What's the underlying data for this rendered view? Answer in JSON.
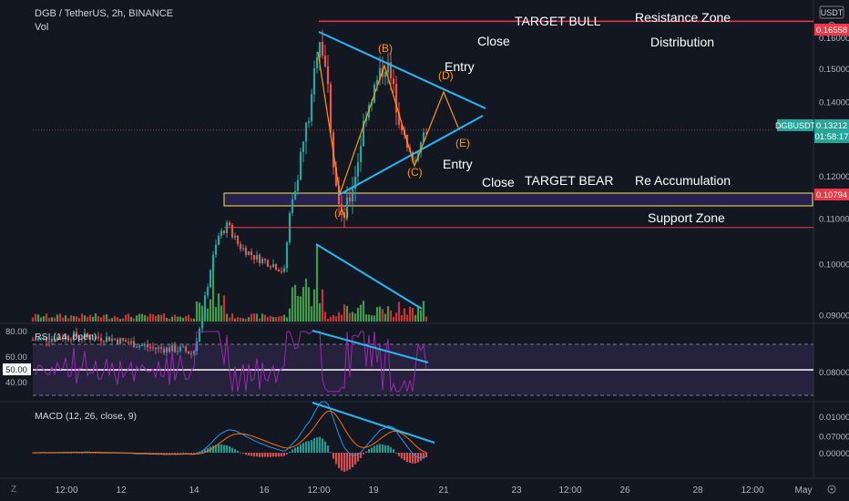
{
  "header": {
    "symbol_line": "DGB / TetherUS, 2h, BINANCE",
    "volume_label": "Vol",
    "currency_badge": "USDT",
    "settings_icon": "gear-icon"
  },
  "price_axis": {
    "ticks": [
      "0.16000",
      "0.15000",
      "0.14000",
      "0.13000",
      "0.12000",
      "0.11000",
      "0.10000",
      "0.09000",
      "0.08000",
      "0.07000"
    ],
    "ylim": [
      0.062,
      0.1715
    ],
    "scale": "log"
  },
  "price_markers": {
    "top": {
      "value": "0.16558",
      "color": "#f23645"
    },
    "current": {
      "symbol": "DGBUSDT",
      "value": "0.13212",
      "countdown": "01:58:17",
      "color": "#26a69a"
    },
    "bottom": {
      "value": "0.10794",
      "color": "#f23645"
    }
  },
  "annotations": {
    "target_bull": "TARGET BULL",
    "resistance_zone": "Resistance Zone",
    "close_top": "Close",
    "distribution": "Distribution",
    "entry_top": "Entry",
    "entry_bottom": "Entry",
    "close_bottom": "Close",
    "target_bear": "TARGET BEAR",
    "re_accumulation": "Re Accumulation",
    "support_zone": "Support Zone",
    "wave_labels": [
      "(A)",
      "(B)",
      "(C)",
      "(D)",
      "(E)"
    ]
  },
  "rsi": {
    "title": "RSI (14, open)",
    "ticks": [
      "80.00",
      "60.00",
      "50.00",
      "40.00"
    ],
    "current": "50.00",
    "bands": [
      30,
      70
    ],
    "ylim": [
      20,
      85
    ]
  },
  "macd": {
    "title": "MACD (12, 26, close, 9)",
    "ticks": [
      "0.01000",
      "0.00000"
    ],
    "ylim": [
      -0.0045,
      0.0125
    ]
  },
  "time_axis": {
    "labels": [
      "12:00",
      "12",
      "14",
      "16",
      "12:00",
      "19",
      "21",
      "23",
      "12:00",
      "26",
      "28",
      "12:00",
      "May"
    ]
  },
  "colors": {
    "up": "#26a69a",
    "down": "#ef5350",
    "vol_up": "#4caf50",
    "vol_down": "#e53935",
    "triangle": "#29b6f6",
    "wave": "#ff9800",
    "rsi_line": "#9c27b0",
    "macd_line": "#2196f3",
    "signal_line": "#ff6d00",
    "zone": "#ffeb3b"
  },
  "chart_data": [
    {
      "type": "candlestick",
      "title": "DGB / TetherUS, 2h, BINANCE",
      "x": [
        "12:00",
        "12",
        "14",
        "16",
        "12:00",
        "19",
        "21",
        "23",
        "12:00",
        "26",
        "28",
        "12:00",
        "May"
      ],
      "waves": [
        {
          "label": "(A)",
          "price": 0.1072
        },
        {
          "label": "(B)",
          "price": 0.1529
        },
        {
          "label": "(C)",
          "price": 0.1214
        },
        {
          "label": "(D)",
          "price": 0.1437
        },
        {
          "label": "(E)",
          "price": 0.1272
        }
      ],
      "levels": [
        {
          "name": "TARGET BULL",
          "price": 0.16558
        },
        {
          "name": "TARGET BEAR",
          "price": 0.10794
        },
        {
          "name": "current",
          "price": 0.13212
        }
      ]
    },
    {
      "type": "line",
      "title": "RSI (14, open)",
      "ylim": [
        20,
        85
      ]
    },
    {
      "type": "bar",
      "title": "MACD (12, 26, close, 9)",
      "ylim": [
        -0.0045,
        0.0125
      ]
    }
  ]
}
